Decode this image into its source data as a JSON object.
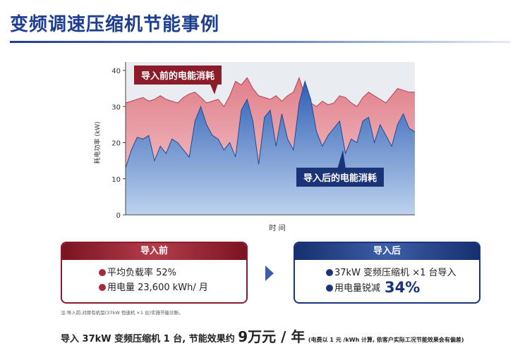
{
  "page": {
    "title": "变频调速压缩机节能事例"
  },
  "chart_data": {
    "type": "area",
    "ylabel": "耗电功率 (kW)",
    "xlabel": "时 间",
    "ylim": [
      0,
      40
    ],
    "yticks": [
      "0",
      "10",
      "20",
      "30",
      "40"
    ],
    "x": [
      0,
      2,
      4,
      6,
      8,
      10,
      12,
      14,
      16,
      18,
      20,
      22,
      24,
      26,
      28,
      30,
      32,
      34,
      36,
      38,
      40,
      42,
      44,
      46,
      48,
      50,
      52,
      54,
      56,
      58,
      60,
      62,
      64,
      66,
      68,
      70,
      72,
      74,
      76,
      78,
      80,
      82,
      84,
      86,
      88,
      90,
      92,
      94,
      96,
      98,
      100
    ],
    "series": [
      {
        "name": "导入前的电能消耗",
        "color": "#d9737f",
        "values": [
          31,
          31.5,
          32,
          32.5,
          31.5,
          32,
          33,
          32,
          31.5,
          31,
          32.5,
          33.5,
          34,
          32.5,
          31,
          31.5,
          32,
          30,
          33,
          37,
          36,
          38,
          35,
          33,
          32.5,
          32,
          33,
          31.5,
          33,
          34,
          38,
          33,
          31,
          30,
          31.5,
          30.5,
          31,
          33,
          32.5,
          31,
          30,
          32.5,
          34,
          33,
          32,
          31,
          33,
          35,
          34.5,
          34,
          34
        ]
      },
      {
        "name": "导入后的电能消耗",
        "color": "#3a6fc0",
        "values": [
          13,
          18,
          21.5,
          21,
          22,
          15,
          19,
          17,
          21,
          20,
          18,
          16,
          26,
          30,
          25,
          22,
          21,
          18,
          20,
          16,
          29,
          32,
          26,
          14,
          27,
          29,
          19,
          28,
          21,
          18,
          31,
          37,
          32,
          23,
          19,
          22,
          24,
          26,
          17,
          21,
          20,
          26,
          27,
          20,
          25,
          22,
          19,
          25,
          28,
          24,
          23
        ]
      }
    ]
  },
  "panels": {
    "before": {
      "header": "导入前",
      "items": [
        "平均负载率 52%",
        "用电量 23,600 kWh/ 月"
      ]
    },
    "after": {
      "header": "导入后",
      "item1": "37kW 变频压缩机 ×1 台导入",
      "item2_text": "用电量锐减",
      "item2_value": "34%"
    }
  },
  "note": "注:导入前,对原有机型(37kW 恒速机 ×1 台)实施节能诊断。",
  "footer": {
    "text1": "导入 37kW 变频压缩机 1 台, 节能效果约",
    "value": "9万元 / 年",
    "remark": "(电费以 1 元 /kWh 计算, 依客户实际工况节能效果会有偏差)"
  },
  "colors": {
    "title_blue": "#1e3f8f",
    "before_red": "#8b1d2a",
    "after_blue": "#1b3478",
    "plot_bg": "#e9edf1"
  }
}
